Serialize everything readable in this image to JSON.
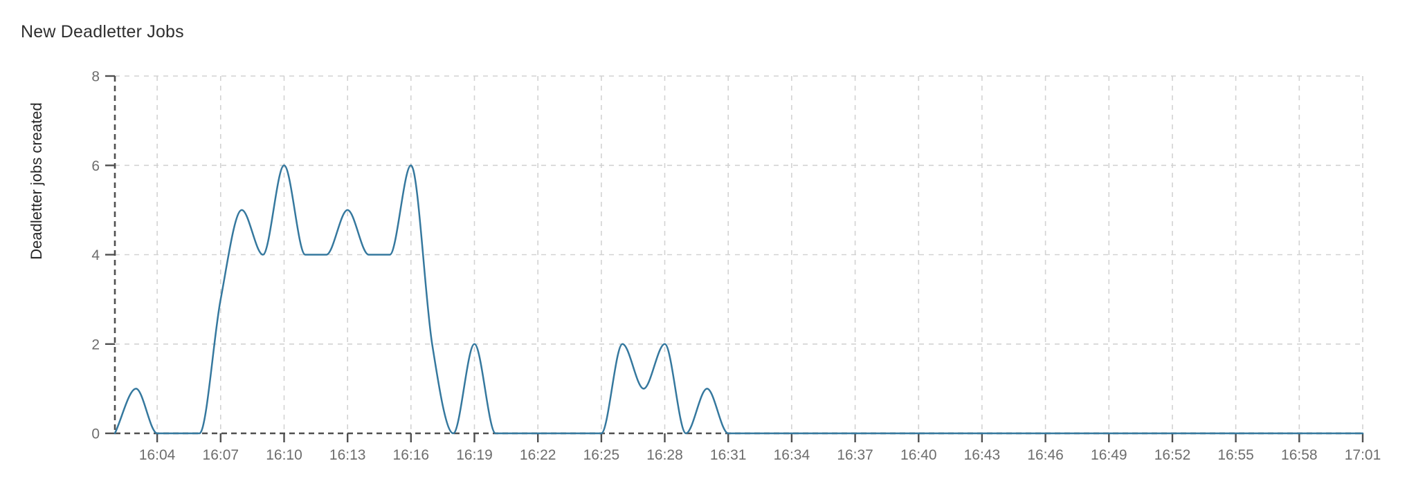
{
  "panel": {
    "title": "New Deadletter Jobs"
  },
  "chart_data": {
    "type": "line",
    "title": "New Deadletter Jobs",
    "xlabel": "",
    "ylabel": "Deadletter jobs created",
    "ylim": [
      0,
      8
    ],
    "y_ticks": [
      0,
      2,
      4,
      6,
      8
    ],
    "grid": true,
    "legend_position": "none",
    "smooth": true,
    "line_color": "#35789e",
    "axis_color": "#4f4f4f",
    "grid_color": "#d2d2d2",
    "tick_label_color": "#6d6d6d",
    "x_tick_labels": [
      "16:04",
      "16:07",
      "16:10",
      "16:13",
      "16:16",
      "16:19",
      "16:22",
      "16:25",
      "16:28",
      "16:31",
      "16:34",
      "16:37",
      "16:40",
      "16:43",
      "16:46",
      "16:49",
      "16:52",
      "16:55",
      "16:58",
      "17:01"
    ],
    "times": [
      "16:02",
      "16:03",
      "16:04",
      "16:05",
      "16:06",
      "16:07",
      "16:08",
      "16:09",
      "16:10",
      "16:11",
      "16:12",
      "16:13",
      "16:14",
      "16:15",
      "16:16",
      "16:17",
      "16:18",
      "16:19",
      "16:20",
      "16:21",
      "16:22",
      "16:23",
      "16:24",
      "16:25",
      "16:26",
      "16:27",
      "16:28",
      "16:29",
      "16:30",
      "16:31",
      "16:32",
      "16:33",
      "16:34",
      "16:35",
      "16:36",
      "16:37",
      "16:38",
      "16:39",
      "16:40",
      "16:41",
      "16:42",
      "16:43",
      "16:44",
      "16:45",
      "16:46",
      "16:47",
      "16:48",
      "16:49",
      "16:50",
      "16:51",
      "16:52",
      "16:53",
      "16:54",
      "16:55",
      "16:56",
      "16:57",
      "16:58",
      "16:59",
      "17:00",
      "17:01"
    ],
    "values": [
      0,
      1,
      0,
      0,
      0,
      3,
      5,
      4,
      6,
      4,
      4,
      5,
      4,
      4,
      6,
      2,
      0,
      2,
      0,
      0,
      0,
      0,
      0,
      0,
      2,
      1,
      2,
      0,
      1,
      0,
      0,
      0,
      0,
      0,
      0,
      0,
      0,
      0,
      0,
      0,
      0,
      0,
      0,
      0,
      0,
      0,
      0,
      0,
      0,
      0,
      0,
      0,
      0,
      0,
      0,
      0,
      0,
      0,
      0,
      0
    ]
  }
}
